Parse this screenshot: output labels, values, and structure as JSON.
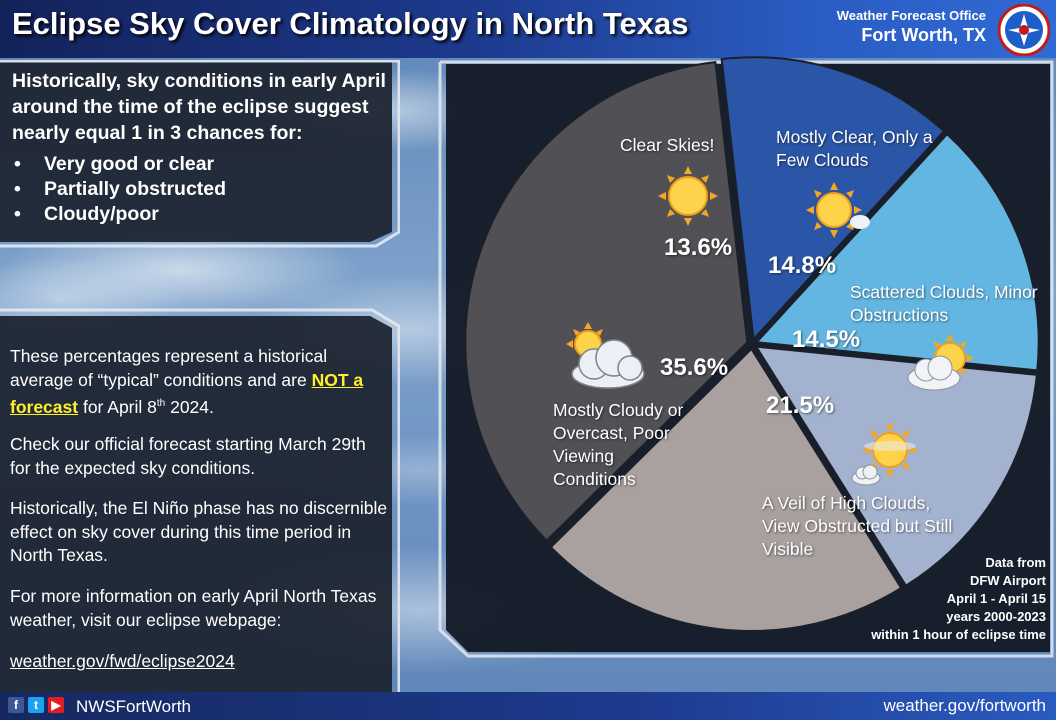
{
  "header": {
    "title": "Eclipse Sky Cover Climatology in North Texas",
    "office_line1": "Weather Forecast Office",
    "office_line2": "Fort Worth, TX"
  },
  "intro": {
    "text": "Historically, sky conditions in early April around the time of the eclipse suggest nearly equal 1 in 3 chances for:",
    "bullets": [
      "Very good or clear",
      "Partially obstructed",
      "Cloudy/poor"
    ]
  },
  "info": {
    "p1_before": "These percentages represent a historical average of “typical” conditions and are ",
    "p1_highlight": "NOT a forecast",
    "p1_after": " for April 8",
    "p1_sup": "th",
    "p1_end": " 2024.",
    "p2": "Check our official forecast starting March 29th for the expected sky conditions.",
    "p3": "Historically, the El Niño phase has no discernible effect on sky cover during this time period in North Texas.",
    "p4": "For more information on early April North Texas weather, visit our eclipse webpage:",
    "link": "weather.gov/fwd/eclipse2024"
  },
  "chart_data": {
    "type": "pie",
    "title": "",
    "slices": [
      {
        "label": "Clear Skies!",
        "value": 13.6,
        "display": "13.6%",
        "color": "#2b55a6",
        "icon": "sun-icon"
      },
      {
        "label": "Mostly Clear, Only a Few Clouds",
        "value": 14.8,
        "display": "14.8%",
        "color": "#63b6e2",
        "icon": "sun-small-cloud-icon"
      },
      {
        "label": "Scattered Clouds, Minor Obstructions",
        "value": 14.5,
        "display": "14.5%",
        "color": "#a3b3cf",
        "icon": "sun-cloud-icon"
      },
      {
        "label": "A Veil of High Clouds, View Obstructed but Still Visible",
        "value": 21.5,
        "display": "21.5%",
        "color": "#a9a0a0",
        "icon": "sun-thin-cloud-icon"
      },
      {
        "label": "Mostly Cloudy or Overcast, Poor Viewing Conditions",
        "value": 35.6,
        "display": "35.6%",
        "color": "#515155",
        "icon": "cloud-sun-icon"
      }
    ],
    "source_lines": [
      "Data from",
      "DFW Airport",
      "April 1 - April 15",
      "years 2000-2023",
      "within 1 hour of eclipse time"
    ]
  },
  "footer": {
    "handle": "NWSFortWorth",
    "site": "weather.gov/fortworth"
  },
  "colors": {
    "banner": "#1d3a8e",
    "highlight": "#ffef2c",
    "panel": "#1c222e"
  }
}
